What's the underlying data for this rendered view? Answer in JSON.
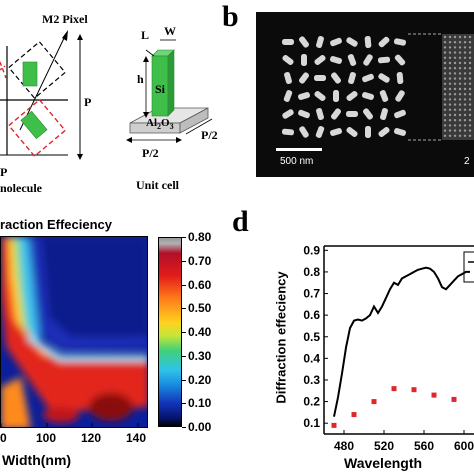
{
  "panel_a": {
    "m2_label": "M2 Pixel",
    "p_right": "P",
    "p_bottom": "P",
    "molecule_label": "nolecule",
    "unit_cell": {
      "L": "L",
      "W": "W",
      "h": "h",
      "si": "Si",
      "substrate_main": "Al",
      "substrate_sub1": "2",
      "substrate_mid": "O",
      "substrate_sub2": "3",
      "p_half_right": "P/2",
      "p_half_bottom": "P/2",
      "caption": "Unit cell"
    }
  },
  "panel_b": {
    "letter": "b",
    "scale_label": "500 nm",
    "right_scale_partial": "2"
  },
  "panel_c": {
    "title": "raction Effeciency",
    "xlabel": "Width(nm)",
    "x_ticks": [
      "0",
      "100",
      "120",
      "140"
    ],
    "colorbar_ticks": [
      "0.80",
      "0.70",
      "0.60",
      "0.50",
      "0.40",
      "0.30",
      "0.20",
      "0.10",
      "0.00"
    ]
  },
  "panel_d": {
    "letter": "d"
  },
  "colors": {
    "black_bg": "#0b0b0b",
    "green": "#3fbf4a",
    "red_dash": "#e0262b",
    "scatter_red": "#e0262b"
  },
  "chart_data": [
    {
      "type": "heatmap",
      "title": "raction Effeciency",
      "xlabel": "Width(nm)",
      "ylabel": "",
      "x_ticks": [
        0,
        100,
        120,
        140
      ],
      "colorbar_range": [
        0.0,
        0.8
      ],
      "colorbar_ticks": [
        0.8,
        0.7,
        0.6,
        0.5,
        0.4,
        0.3,
        0.2,
        0.1,
        0.0
      ]
    },
    {
      "type": "line",
      "title": "",
      "xlabel": "Wavelength",
      "ylabel": "Diffraction effeciency",
      "xlim": [
        460,
        610
      ],
      "ylim": [
        0.05,
        0.92
      ],
      "x_ticks": [
        480,
        520,
        560,
        600
      ],
      "y_ticks": [
        0.1,
        0.2,
        0.3,
        0.4,
        0.5,
        0.6,
        0.7,
        0.8,
        0.9
      ],
      "series": [
        {
          "style": "line",
          "color": "#000000",
          "x": [
            470,
            474,
            478,
            482,
            486,
            490,
            494,
            498,
            502,
            506,
            510,
            514,
            518,
            522,
            526,
            530,
            534,
            538,
            542,
            546,
            550,
            554,
            558,
            562,
            566,
            570,
            574,
            578,
            582,
            586,
            590,
            594,
            598,
            602,
            606
          ],
          "y": [
            0.13,
            0.22,
            0.33,
            0.45,
            0.54,
            0.575,
            0.58,
            0.575,
            0.585,
            0.6,
            0.64,
            0.61,
            0.64,
            0.68,
            0.72,
            0.75,
            0.74,
            0.77,
            0.78,
            0.79,
            0.8,
            0.81,
            0.815,
            0.82,
            0.815,
            0.8,
            0.77,
            0.73,
            0.72,
            0.74,
            0.76,
            0.78,
            0.79,
            0.8,
            0.8
          ]
        },
        {
          "style": "scatter",
          "color": "#e0262b",
          "x": [
            470,
            490,
            510,
            530,
            550,
            570,
            590
          ],
          "y": [
            0.09,
            0.14,
            0.2,
            0.26,
            0.255,
            0.23,
            0.21
          ]
        }
      ]
    }
  ]
}
